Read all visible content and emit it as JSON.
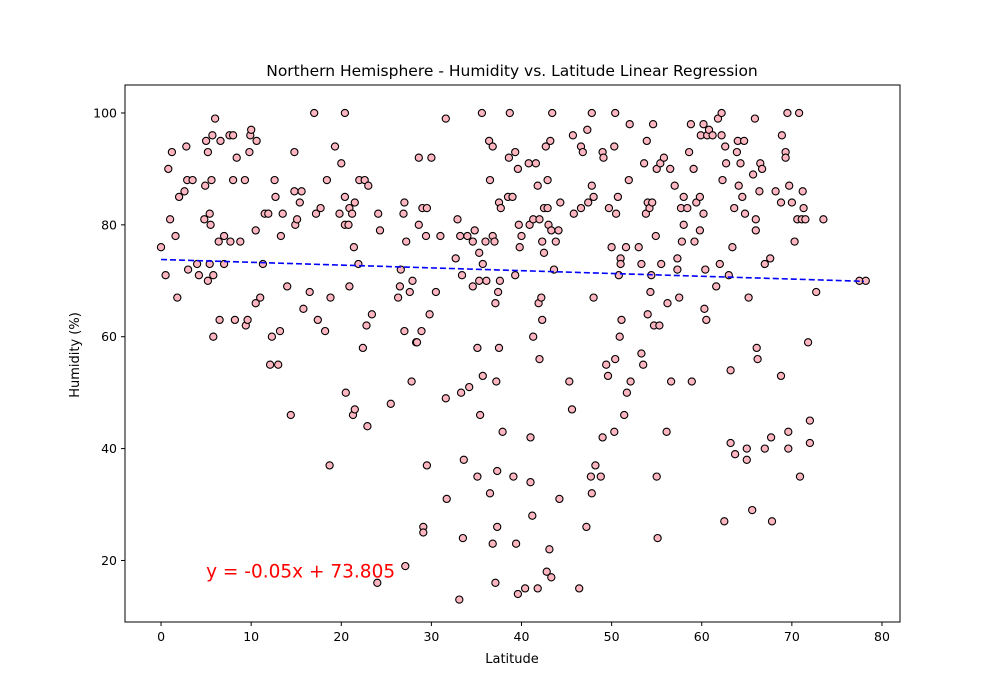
{
  "chart_data": {
    "type": "scatter",
    "title": "Northern Hemisphere - Humidity vs. Latitude Linear Regression",
    "xlabel": "Latitude",
    "ylabel": "Humidity (%)",
    "xlim": [
      -4,
      82
    ],
    "ylim": [
      9,
      105
    ],
    "xticks": [
      0,
      10,
      20,
      30,
      40,
      50,
      60,
      70,
      80
    ],
    "yticks": [
      20,
      40,
      60,
      80,
      100
    ],
    "grid": false,
    "marker_fill": "#ffb6c1",
    "marker_edge": "#000000",
    "regression": {
      "slope": -0.05,
      "intercept": 73.805,
      "x_range": [
        0,
        78
      ],
      "color": "#0000ff",
      "style": "dashed",
      "equation_text": "y = -0.05x + 73.805",
      "equation_color": "#ff0000",
      "equation_position": [
        5,
        18
      ]
    },
    "points": [
      [
        0.0,
        76
      ],
      [
        0.5,
        71
      ],
      [
        0.8,
        90
      ],
      [
        1.0,
        81
      ],
      [
        1.2,
        93
      ],
      [
        1.6,
        78
      ],
      [
        1.8,
        67
      ],
      [
        2.0,
        85
      ],
      [
        2.6,
        86
      ],
      [
        2.8,
        94
      ],
      [
        2.9,
        88
      ],
      [
        3.0,
        72
      ],
      [
        3.5,
        88
      ],
      [
        4.0,
        73
      ],
      [
        4.2,
        71
      ],
      [
        4.8,
        81
      ],
      [
        4.9,
        87
      ],
      [
        5.0,
        95
      ],
      [
        5.2,
        70
      ],
      [
        5.2,
        93
      ],
      [
        5.4,
        73
      ],
      [
        5.4,
        82
      ],
      [
        5.5,
        80
      ],
      [
        5.6,
        88
      ],
      [
        5.7,
        96
      ],
      [
        5.8,
        60
      ],
      [
        5.8,
        71
      ],
      [
        6.0,
        99
      ],
      [
        6.4,
        77
      ],
      [
        6.5,
        63
      ],
      [
        6.6,
        95
      ],
      [
        7.0,
        73
      ],
      [
        7.0,
        78
      ],
      [
        7.6,
        96
      ],
      [
        7.7,
        77
      ],
      [
        8.0,
        96
      ],
      [
        8.0,
        88
      ],
      [
        8.2,
        63
      ],
      [
        8.4,
        92
      ],
      [
        8.8,
        77
      ],
      [
        9.3,
        88
      ],
      [
        9.4,
        62
      ],
      [
        9.6,
        63
      ],
      [
        9.8,
        93
      ],
      [
        9.9,
        96
      ],
      [
        10.0,
        97
      ],
      [
        10.5,
        79
      ],
      [
        10.5,
        66
      ],
      [
        10.6,
        95
      ],
      [
        11.0,
        67
      ],
      [
        11.3,
        73
      ],
      [
        11.5,
        82
      ],
      [
        11.9,
        82
      ],
      [
        12.1,
        55
      ],
      [
        12.3,
        60
      ],
      [
        12.6,
        88
      ],
      [
        12.7,
        85
      ],
      [
        13.0,
        55
      ],
      [
        13.2,
        61
      ],
      [
        13.3,
        78
      ],
      [
        13.5,
        82
      ],
      [
        14.0,
        69
      ],
      [
        14.4,
        46
      ],
      [
        14.8,
        93
      ],
      [
        14.8,
        86
      ],
      [
        14.9,
        80
      ],
      [
        15.1,
        81
      ],
      [
        15.4,
        84
      ],
      [
        15.6,
        86
      ],
      [
        15.8,
        65
      ],
      [
        16.5,
        68
      ],
      [
        17.0,
        100
      ],
      [
        17.2,
        82
      ],
      [
        17.4,
        63
      ],
      [
        17.7,
        83
      ],
      [
        18.2,
        61
      ],
      [
        18.4,
        88
      ],
      [
        18.7,
        37
      ],
      [
        18.8,
        67
      ],
      [
        19.3,
        94
      ],
      [
        19.8,
        82
      ],
      [
        20.0,
        91
      ],
      [
        20.4,
        80
      ],
      [
        20.4,
        100
      ],
      [
        20.4,
        85
      ],
      [
        20.5,
        50
      ],
      [
        20.8,
        80
      ],
      [
        20.9,
        83
      ],
      [
        20.9,
        69
      ],
      [
        21.2,
        82
      ],
      [
        21.3,
        46
      ],
      [
        21.4,
        76
      ],
      [
        21.5,
        84
      ],
      [
        21.5,
        47
      ],
      [
        21.9,
        73
      ],
      [
        22.0,
        88
      ],
      [
        22.4,
        58
      ],
      [
        22.6,
        88
      ],
      [
        22.8,
        62
      ],
      [
        22.9,
        44
      ],
      [
        23.0,
        87
      ],
      [
        23.4,
        64
      ],
      [
        24.0,
        16
      ],
      [
        24.1,
        82
      ],
      [
        24.3,
        79
      ],
      [
        25.5,
        48
      ],
      [
        26.3,
        67
      ],
      [
        26.5,
        69
      ],
      [
        26.6,
        72
      ],
      [
        26.9,
        82
      ],
      [
        27.0,
        84
      ],
      [
        27.0,
        61
      ],
      [
        27.1,
        19
      ],
      [
        27.2,
        77
      ],
      [
        27.6,
        68
      ],
      [
        27.8,
        52
      ],
      [
        27.9,
        70
      ],
      [
        28.3,
        59
      ],
      [
        28.4,
        59
      ],
      [
        28.6,
        80
      ],
      [
        28.6,
        92
      ],
      [
        28.9,
        61
      ],
      [
        29.0,
        83
      ],
      [
        29.1,
        26
      ],
      [
        29.1,
        25
      ],
      [
        29.4,
        78
      ],
      [
        29.5,
        83
      ],
      [
        29.5,
        37
      ],
      [
        29.8,
        64
      ],
      [
        30.0,
        92
      ],
      [
        30.5,
        68
      ],
      [
        31.0,
        78
      ],
      [
        31.6,
        99
      ],
      [
        31.6,
        49
      ],
      [
        31.7,
        31
      ],
      [
        32.7,
        74
      ],
      [
        32.9,
        81
      ],
      [
        33.1,
        13
      ],
      [
        33.2,
        78
      ],
      [
        33.3,
        50
      ],
      [
        33.4,
        71
      ],
      [
        33.5,
        24
      ],
      [
        33.6,
        38
      ],
      [
        34.0,
        78
      ],
      [
        34.2,
        51
      ],
      [
        34.6,
        77
      ],
      [
        34.6,
        69
      ],
      [
        34.8,
        79
      ],
      [
        35.1,
        35
      ],
      [
        35.1,
        58
      ],
      [
        35.3,
        70
      ],
      [
        35.3,
        75
      ],
      [
        35.4,
        46
      ],
      [
        35.6,
        100
      ],
      [
        35.7,
        53
      ],
      [
        35.7,
        73
      ],
      [
        36.0,
        77
      ],
      [
        36.1,
        70
      ],
      [
        36.4,
        95
      ],
      [
        36.5,
        88
      ],
      [
        36.5,
        32
      ],
      [
        36.8,
        94
      ],
      [
        36.8,
        23
      ],
      [
        36.8,
        78
      ],
      [
        37.0,
        77
      ],
      [
        37.1,
        16
      ],
      [
        37.1,
        66
      ],
      [
        37.2,
        52
      ],
      [
        37.3,
        26
      ],
      [
        37.3,
        36
      ],
      [
        37.4,
        68
      ],
      [
        37.5,
        84
      ],
      [
        37.5,
        58
      ],
      [
        37.6,
        70
      ],
      [
        37.7,
        83
      ],
      [
        37.9,
        43
      ],
      [
        38.5,
        85
      ],
      [
        38.6,
        92
      ],
      [
        38.7,
        100
      ],
      [
        39.0,
        85
      ],
      [
        39.1,
        35
      ],
      [
        39.3,
        93
      ],
      [
        39.3,
        71
      ],
      [
        39.4,
        23
      ],
      [
        39.6,
        14
      ],
      [
        39.6,
        90
      ],
      [
        39.7,
        80
      ],
      [
        39.8,
        76
      ],
      [
        40.0,
        78
      ],
      [
        40.4,
        15
      ],
      [
        40.8,
        91
      ],
      [
        40.9,
        80
      ],
      [
        41.0,
        34
      ],
      [
        41.0,
        42
      ],
      [
        41.2,
        28
      ],
      [
        41.3,
        81
      ],
      [
        41.3,
        60
      ],
      [
        41.6,
        91
      ],
      [
        41.8,
        87
      ],
      [
        41.8,
        15
      ],
      [
        41.9,
        66
      ],
      [
        42.0,
        56
      ],
      [
        42.0,
        81
      ],
      [
        42.2,
        67
      ],
      [
        42.3,
        63
      ],
      [
        42.3,
        77
      ],
      [
        42.5,
        83
      ],
      [
        42.5,
        75
      ],
      [
        42.7,
        94
      ],
      [
        42.8,
        18
      ],
      [
        42.9,
        88
      ],
      [
        42.9,
        83
      ],
      [
        43.0,
        80
      ],
      [
        43.1,
        22
      ],
      [
        43.2,
        95
      ],
      [
        43.3,
        79
      ],
      [
        43.3,
        17
      ],
      [
        43.4,
        100
      ],
      [
        43.6,
        72
      ],
      [
        43.8,
        77
      ],
      [
        44.1,
        79
      ],
      [
        44.2,
        31
      ],
      [
        44.3,
        84
      ],
      [
        45.3,
        52
      ],
      [
        45.6,
        47
      ],
      [
        45.7,
        96
      ],
      [
        45.8,
        82
      ],
      [
        46.4,
        15
      ],
      [
        46.6,
        94
      ],
      [
        46.6,
        83
      ],
      [
        46.8,
        93
      ],
      [
        47.2,
        26
      ],
      [
        47.3,
        97
      ],
      [
        47.4,
        84
      ],
      [
        47.7,
        35
      ],
      [
        47.8,
        32
      ],
      [
        47.8,
        100
      ],
      [
        47.8,
        87
      ],
      [
        48.0,
        85
      ],
      [
        48.0,
        67
      ],
      [
        48.2,
        37
      ],
      [
        48.8,
        35
      ],
      [
        49.0,
        42
      ],
      [
        49.0,
        93
      ],
      [
        49.1,
        92
      ],
      [
        49.4,
        55
      ],
      [
        49.6,
        53
      ],
      [
        49.7,
        83
      ],
      [
        50.0,
        76
      ],
      [
        50.3,
        43
      ],
      [
        50.3,
        94
      ],
      [
        50.4,
        56
      ],
      [
        50.4,
        100
      ],
      [
        50.5,
        82
      ],
      [
        50.7,
        85
      ],
      [
        50.8,
        71
      ],
      [
        50.9,
        60
      ],
      [
        51.0,
        74
      ],
      [
        51.0,
        73
      ],
      [
        51.1,
        63
      ],
      [
        51.4,
        46
      ],
      [
        51.6,
        76
      ],
      [
        51.7,
        50
      ],
      [
        51.9,
        88
      ],
      [
        52.0,
        98
      ],
      [
        52.1,
        52
      ],
      [
        53.0,
        76
      ],
      [
        53.3,
        57
      ],
      [
        53.3,
        73
      ],
      [
        53.5,
        55
      ],
      [
        53.6,
        91
      ],
      [
        53.8,
        82
      ],
      [
        53.9,
        95
      ],
      [
        54.0,
        64
      ],
      [
        54.0,
        84
      ],
      [
        54.2,
        83
      ],
      [
        54.3,
        68
      ],
      [
        54.4,
        71
      ],
      [
        54.5,
        84
      ],
      [
        54.6,
        98
      ],
      [
        54.7,
        62
      ],
      [
        54.9,
        78
      ],
      [
        55.0,
        90
      ],
      [
        55.0,
        35
      ],
      [
        55.1,
        24
      ],
      [
        55.3,
        62
      ],
      [
        55.4,
        91
      ],
      [
        55.5,
        73
      ],
      [
        55.8,
        92
      ],
      [
        56.1,
        43
      ],
      [
        56.2,
        66
      ],
      [
        56.5,
        90
      ],
      [
        56.6,
        52
      ],
      [
        57.0,
        87
      ],
      [
        57.3,
        74
      ],
      [
        57.3,
        72
      ],
      [
        57.5,
        67
      ],
      [
        57.7,
        83
      ],
      [
        57.8,
        77
      ],
      [
        58.0,
        80
      ],
      [
        58.0,
        85
      ],
      [
        58.4,
        83
      ],
      [
        58.6,
        93
      ],
      [
        58.8,
        98
      ],
      [
        58.9,
        52
      ],
      [
        59.1,
        90
      ],
      [
        59.2,
        77
      ],
      [
        59.4,
        84
      ],
      [
        59.8,
        79
      ],
      [
        59.8,
        85
      ],
      [
        59.9,
        96
      ],
      [
        60.2,
        98
      ],
      [
        60.2,
        82
      ],
      [
        60.3,
        65
      ],
      [
        60.4,
        72
      ],
      [
        60.5,
        63
      ],
      [
        60.6,
        96
      ],
      [
        60.8,
        97
      ],
      [
        61.2,
        96
      ],
      [
        61.6,
        69
      ],
      [
        61.8,
        99
      ],
      [
        62.0,
        73
      ],
      [
        62.2,
        96
      ],
      [
        62.2,
        100
      ],
      [
        62.3,
        88
      ],
      [
        62.5,
        27
      ],
      [
        62.6,
        94
      ],
      [
        62.7,
        91
      ],
      [
        63.0,
        71
      ],
      [
        63.2,
        54
      ],
      [
        63.2,
        41
      ],
      [
        63.4,
        76
      ],
      [
        63.6,
        83
      ],
      [
        63.7,
        39
      ],
      [
        63.9,
        93
      ],
      [
        64.0,
        95
      ],
      [
        64.1,
        87
      ],
      [
        64.3,
        91
      ],
      [
        64.5,
        85
      ],
      [
        64.7,
        95
      ],
      [
        64.8,
        82
      ],
      [
        65.0,
        40
      ],
      [
        65.0,
        38
      ],
      [
        65.2,
        67
      ],
      [
        65.6,
        29
      ],
      [
        65.7,
        89
      ],
      [
        65.9,
        99
      ],
      [
        66.0,
        81
      ],
      [
        66.0,
        79
      ],
      [
        66.1,
        58
      ],
      [
        66.2,
        56
      ],
      [
        66.4,
        86
      ],
      [
        66.5,
        91
      ],
      [
        66.7,
        90
      ],
      [
        67.0,
        73
      ],
      [
        67.0,
        40
      ],
      [
        67.6,
        74
      ],
      [
        67.7,
        42
      ],
      [
        67.8,
        27
      ],
      [
        68.2,
        86
      ],
      [
        68.8,
        84
      ],
      [
        68.8,
        53
      ],
      [
        68.9,
        96
      ],
      [
        69.3,
        93
      ],
      [
        69.3,
        92
      ],
      [
        69.5,
        100
      ],
      [
        69.6,
        40
      ],
      [
        69.6,
        43
      ],
      [
        69.7,
        87
      ],
      [
        70.0,
        84
      ],
      [
        70.3,
        77
      ],
      [
        70.6,
        81
      ],
      [
        70.8,
        100
      ],
      [
        70.9,
        35
      ],
      [
        71.1,
        81
      ],
      [
        71.2,
        86
      ],
      [
        71.3,
        83
      ],
      [
        71.5,
        81
      ],
      [
        71.8,
        59
      ],
      [
        72.0,
        45
      ],
      [
        72.0,
        41
      ],
      [
        72.7,
        68
      ],
      [
        73.5,
        81
      ],
      [
        77.5,
        70
      ],
      [
        78.2,
        70
      ]
    ]
  }
}
